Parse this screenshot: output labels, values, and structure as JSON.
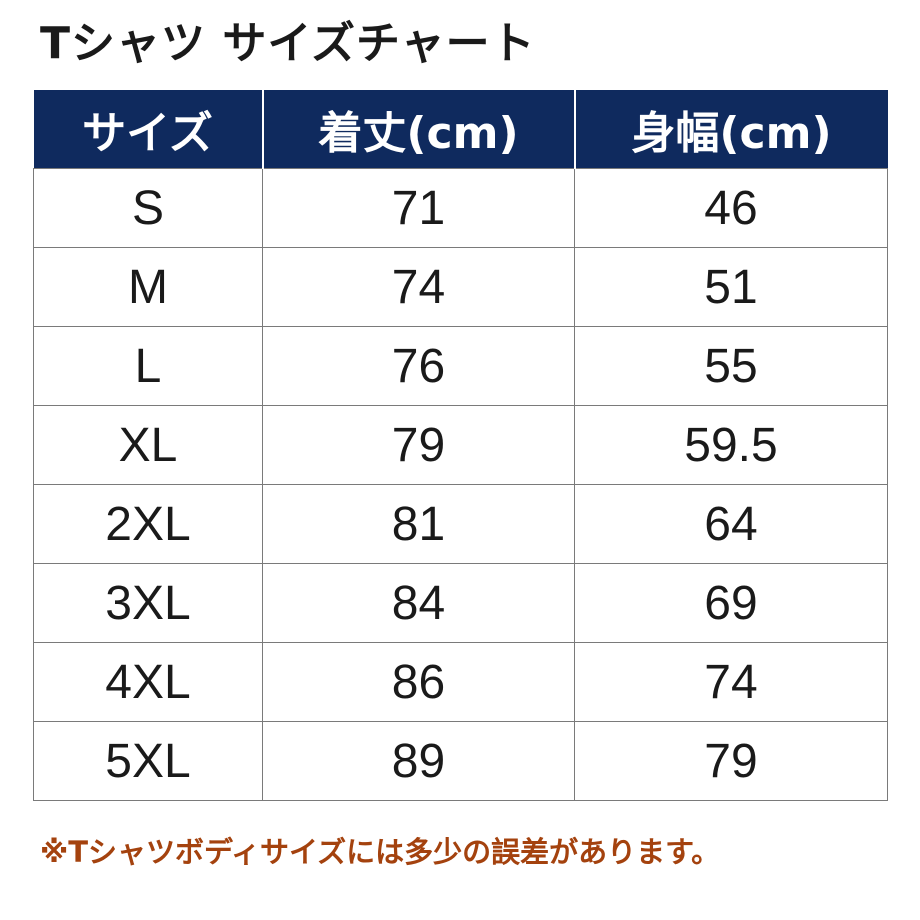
{
  "title": "Tシャツ サイズチャート",
  "table": {
    "headers": [
      "サイズ",
      "着丈(cm)",
      "身幅(cm)"
    ],
    "rows": [
      [
        "S",
        "71",
        "46"
      ],
      [
        "M",
        "74",
        "51"
      ],
      [
        "L",
        "76",
        "55"
      ],
      [
        "XL",
        "79",
        "59.5"
      ],
      [
        "2XL",
        "81",
        "64"
      ],
      [
        "3XL",
        "84",
        "69"
      ],
      [
        "4XL",
        "86",
        "74"
      ],
      [
        "5XL",
        "89",
        "79"
      ]
    ]
  },
  "note": "※Tシャツボディサイズには多少の誤差があります。",
  "colors": {
    "header_bg": "#0f2a5e",
    "note_text": "#a4420e"
  }
}
